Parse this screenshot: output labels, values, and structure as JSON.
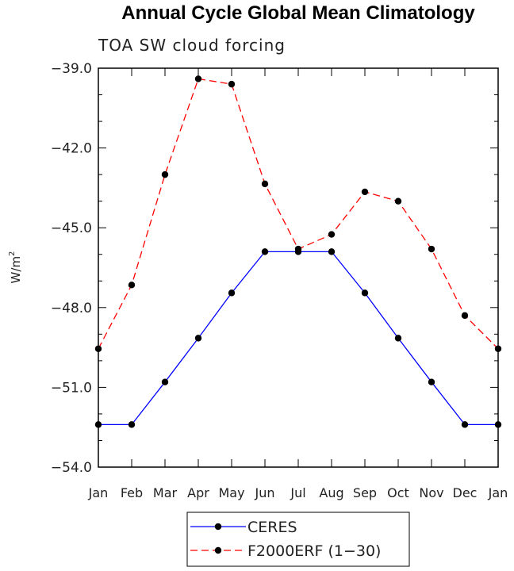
{
  "chart_data": {
    "type": "line",
    "title": "Annual Cycle Global Mean Climatology",
    "subtitle": "TOA SW cloud forcing",
    "ylabel": "W/m",
    "ylabel_sup": "2",
    "xlabel": "",
    "categories": [
      "Jan",
      "Feb",
      "Mar",
      "Apr",
      "May",
      "Jun",
      "Jul",
      "Aug",
      "Sep",
      "Oct",
      "Nov",
      "Dec",
      "Jan"
    ],
    "ylim": [
      -54.0,
      -39.0
    ],
    "yticks": [
      -39.0,
      -42.0,
      -45.0,
      -48.0,
      -51.0,
      -54.0
    ],
    "ytick_labels": [
      "−39.0",
      "−42.0",
      "−45.0",
      "−48.0",
      "−51.0",
      "−54.0"
    ],
    "series": [
      {
        "name": "CERES",
        "color": "#0000ff",
        "dash": "solid",
        "values": [
          -52.4,
          -52.4,
          -50.8,
          -49.15,
          -47.45,
          -45.9,
          -45.9,
          -45.9,
          -47.45,
          -49.15,
          -50.8,
          -52.4,
          -52.4
        ]
      },
      {
        "name": "F2000ERF (1−30)",
        "color": "#ff0000",
        "dash": "dashed",
        "values": [
          -49.55,
          -47.15,
          -43.0,
          -39.4,
          -39.6,
          -43.35,
          -45.8,
          -45.25,
          -43.65,
          -44.0,
          -45.8,
          -48.3,
          -49.55
        ]
      }
    ]
  }
}
